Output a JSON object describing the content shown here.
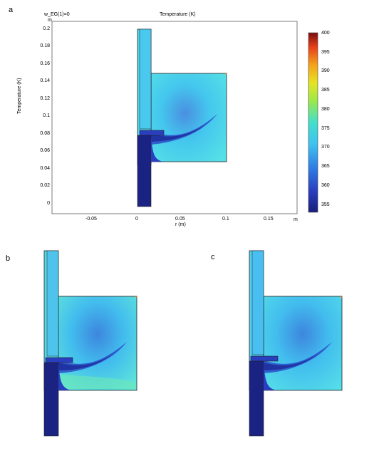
{
  "panels": {
    "a": "a",
    "b": "b",
    "c": "c"
  },
  "plot_a": {
    "parameter_label": "w_EG(1)=0",
    "title": "Temperature (K)",
    "y_unit": "m",
    "x_unit": "m",
    "ylabel": "Temperature (K)",
    "xlabel": "r (m)",
    "y_ticks": [
      "0.2",
      "0.18",
      "0.16",
      "0.14",
      "0.12",
      "0.1",
      "0.08",
      "0.06",
      "0.04",
      "0.02",
      "0"
    ],
    "x_ticks": [
      "-0.05",
      "0",
      "0.05",
      "0.1",
      "0.15"
    ]
  },
  "colorbar": {
    "ticks": [
      "400",
      "395",
      "390",
      "385",
      "380",
      "375",
      "370",
      "365",
      "360",
      "355"
    ],
    "min": 353,
    "max": 401
  },
  "colors": {
    "cold": "#1a2380",
    "body": "#3fd6e8",
    "plume": "#2a55c8",
    "hot": "#a81010"
  }
}
